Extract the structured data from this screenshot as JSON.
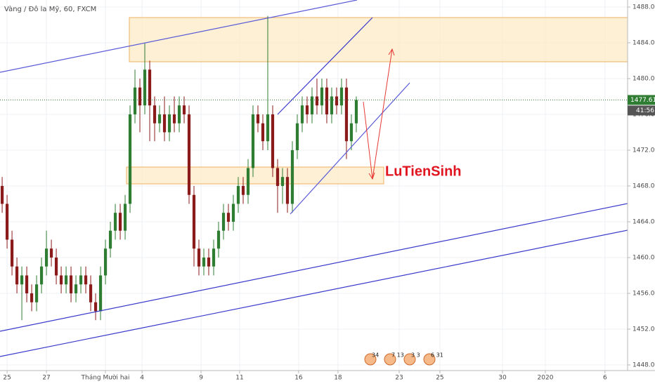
{
  "chart_data": {
    "type": "candlestick",
    "title": "Vàng / Đô la Mỹ, 60, FXCM",
    "x": [
      -0.25,
      0,
      0.25,
      0.5,
      0.75,
      1,
      1.25,
      1.5,
      1.75,
      2,
      2.25,
      2.5,
      2.75,
      3,
      3.25,
      3.5,
      3.75,
      4,
      4.25,
      4.5,
      4.75,
      5,
      5.25,
      5.5,
      5.75,
      6,
      6.25,
      6.5,
      6.75,
      7,
      7.25,
      7.5,
      7.75,
      8,
      8.25,
      8.5,
      8.75,
      9,
      9.25,
      9.5,
      9.75,
      10,
      10.25,
      10.5,
      10.75,
      11,
      11.25,
      11.5,
      11.75,
      12,
      12.25,
      12.5,
      12.75,
      13,
      13.25,
      13.5,
      13.75,
      14,
      14.25,
      14.5,
      14.75,
      15,
      15.25,
      15.5,
      15.75,
      16,
      16.25,
      16.5,
      16.75,
      17,
      17.25,
      17.5,
      17.75
    ],
    "open": [
      1468,
      1466,
      1462,
      1459,
      1457,
      1458,
      1456,
      1455,
      1457,
      1459,
      1461,
      1460,
      1458,
      1457,
      1458,
      1456,
      1457,
      1458,
      1457,
      1455,
      1454,
      1458,
      1461,
      1463,
      1465,
      1463,
      1466,
      1476,
      1479,
      1477,
      1481,
      1477,
      1475,
      1476,
      1474,
      1476,
      1475,
      1477,
      1476,
      1467,
      1461,
      1459,
      1460,
      1459,
      1461,
      1463,
      1465,
      1464,
      1466,
      1468,
      1467,
      1470,
      1476,
      1475,
      1473,
      1476,
      1470,
      1468,
      1469,
      1466,
      1472,
      1475,
      1477,
      1476,
      1478,
      1477,
      1479,
      1476,
      1478,
      1477,
      1479,
      1473,
      1475
    ],
    "high": [
      1469,
      1467,
      1463,
      1460,
      1459,
      1459,
      1457,
      1458,
      1460,
      1463,
      1462,
      1461,
      1459,
      1459,
      1459,
      1458,
      1459,
      1459,
      1458,
      1456,
      1459,
      1462,
      1464,
      1466,
      1466,
      1467,
      1477,
      1481,
      1480,
      1484,
      1482,
      1478,
      1477,
      1478,
      1477,
      1478,
      1478,
      1478,
      1477,
      1468,
      1462,
      1461,
      1461,
      1462,
      1464,
      1466,
      1466,
      1467,
      1469,
      1469,
      1471,
      1477,
      1477,
      1476,
      1487,
      1477,
      1471,
      1470,
      1470,
      1473,
      1476,
      1478,
      1478,
      1479,
      1480,
      1480,
      1480,
      1479,
      1479,
      1480,
      1480,
      1476,
      1478
    ],
    "low": [
      1465,
      1461,
      1458,
      1456,
      1453,
      1455,
      1454,
      1454,
      1456,
      1458,
      1459,
      1457,
      1456,
      1456,
      1455,
      1455,
      1456,
      1456,
      1454,
      1453,
      1453,
      1457,
      1460,
      1462,
      1462,
      1462,
      1465,
      1475,
      1474,
      1476,
      1473,
      1473,
      1474,
      1473,
      1473,
      1474,
      1474,
      1475,
      1466,
      1459,
      1458,
      1458,
      1458,
      1458,
      1460,
      1462,
      1463,
      1463,
      1465,
      1466,
      1466,
      1469,
      1474,
      1472,
      1472,
      1469,
      1465,
      1466,
      1465,
      1465,
      1471,
      1474,
      1475,
      1475,
      1476,
      1476,
      1475,
      1475,
      1476,
      1476,
      1471,
      1472,
      1474
    ],
    "close": [
      1466,
      1462,
      1459,
      1457,
      1458,
      1456,
      1455,
      1457,
      1459,
      1461,
      1460,
      1458,
      1457,
      1458,
      1456,
      1457,
      1458,
      1457,
      1455,
      1454,
      1458,
      1461,
      1463,
      1465,
      1463,
      1466,
      1476,
      1479,
      1477,
      1481,
      1477,
      1475,
      1476,
      1474,
      1476,
      1475,
      1477,
      1476,
      1467,
      1461,
      1459,
      1460,
      1459,
      1461,
      1463,
      1465,
      1464,
      1466,
      1468,
      1467,
      1470,
      1476,
      1475,
      1473,
      1476,
      1470,
      1468,
      1469,
      1466,
      1472,
      1475,
      1477,
      1476,
      1478,
      1477,
      1479,
      1476,
      1478,
      1477,
      1479,
      1473,
      1475,
      1477.61
    ],
    "up_color": "#2e7d32",
    "down_color": "#8b1a1a",
    "xlim": [
      -0.36,
      31.54
    ],
    "xticks": [
      {
        "value": 0,
        "label": "25"
      },
      {
        "value": 2,
        "label": "27"
      },
      {
        "value": 5,
        "label": "Tháng Mười hai"
      },
      {
        "value": 6.86,
        "label": "4"
      },
      {
        "value": 9.86,
        "label": "9"
      },
      {
        "value": 11.82,
        "label": "11"
      },
      {
        "value": 14.82,
        "label": "16"
      },
      {
        "value": 16.82,
        "label": "18"
      },
      {
        "value": 19.93,
        "label": "23"
      },
      {
        "value": 22,
        "label": "25"
      },
      {
        "value": 25.18,
        "label": "30"
      },
      {
        "value": 27.36,
        "label": "2020"
      },
      {
        "value": 30.39,
        "label": "6"
      }
    ],
    "ylim": [
      1447.37,
      1488.78
    ],
    "yticks": [
      {
        "value": 1448,
        "label": "1448.00"
      },
      {
        "value": 1452,
        "label": "1452.00"
      },
      {
        "value": 1456,
        "label": "1456.00"
      },
      {
        "value": 1460,
        "label": "1460.00"
      },
      {
        "value": 1464,
        "label": "1464.00"
      },
      {
        "value": 1468,
        "label": "1468.00"
      },
      {
        "value": 1472,
        "label": "1472.00"
      },
      {
        "value": 1476,
        "label": "1476.00"
      },
      {
        "value": 1480,
        "label": "1480.00"
      },
      {
        "value": 1484,
        "label": "1484.00"
      },
      {
        "value": 1488,
        "label": "1488.00"
      }
    ],
    "grid": true,
    "countdown": "41:56",
    "annotation": "LuTienSinh",
    "events": [
      "34",
      "7 13",
      "3 3",
      "6 31"
    ]
  }
}
